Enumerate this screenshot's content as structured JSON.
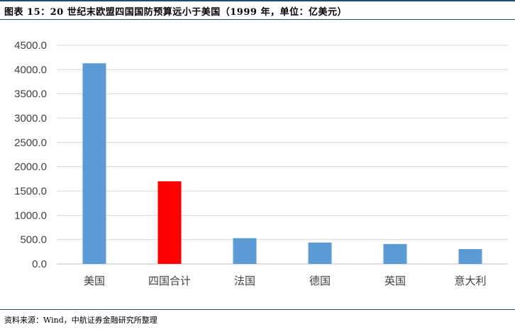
{
  "header": {
    "title": "图表 15：20 世纪末欧盟四国国防预算远小于美国（1999 年，单位：亿美元）"
  },
  "footer": {
    "source": "资料来源：Wind，中航证券金融研究所整理"
  },
  "chart_data": {
    "type": "bar",
    "categories": [
      "美国",
      "四国合计",
      "法国",
      "德国",
      "英国",
      "意大利"
    ],
    "values": [
      4130,
      1700,
      530,
      440,
      410,
      305
    ],
    "ylim": [
      0,
      4500
    ],
    "yticks": [
      "0.0",
      "500.0",
      "1000.0",
      "1500.0",
      "2000.0",
      "2500.0",
      "3000.0",
      "3500.0",
      "4000.0",
      "4500.0"
    ],
    "grid": true,
    "legend": "none",
    "colors": {
      "default": "#5b9bd5",
      "highlight": "#ff0000",
      "highlight_category": "四国合计",
      "grid": "#d9d9d9"
    }
  }
}
